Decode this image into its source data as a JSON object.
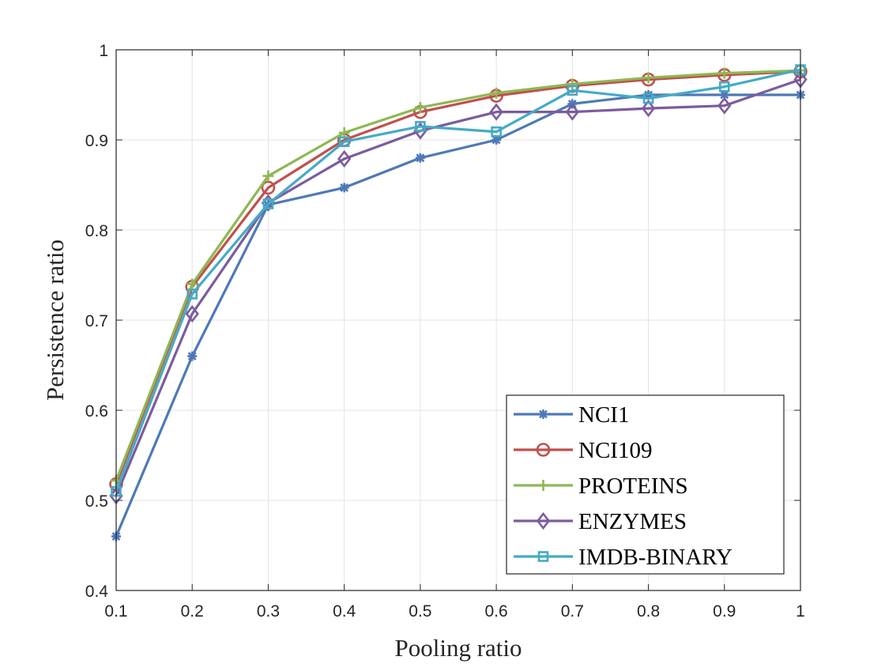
{
  "chart_data": {
    "type": "line",
    "title": "",
    "xlabel": "Pooling ratio",
    "ylabel": "Persistence ratio",
    "xlim": [
      0.1,
      1.0
    ],
    "ylim": [
      0.4,
      1.0
    ],
    "grid": true,
    "legend_position": "bottom-right",
    "x": [
      0.1,
      0.2,
      0.3,
      0.4,
      0.5,
      0.6,
      0.7,
      0.8,
      0.9,
      1.0
    ],
    "x_tick_labels": [
      "0.1",
      "0.2",
      "0.3",
      "0.4",
      "0.5",
      "0.6",
      "0.7",
      "0.8",
      "0.9",
      "1"
    ],
    "y_ticks": [
      0.4,
      0.5,
      0.6,
      0.7,
      0.8,
      0.9,
      1.0
    ],
    "y_tick_labels": [
      "0.4",
      "0.5",
      "0.6",
      "0.7",
      "0.8",
      "0.9",
      "1"
    ],
    "series": [
      {
        "name": "NCI1",
        "color": "#4E79B8",
        "marker": "asterisk",
        "values": [
          0.46,
          0.66,
          0.828,
          0.847,
          0.88,
          0.9,
          0.94,
          0.95,
          0.95,
          0.95
        ]
      },
      {
        "name": "NCI109",
        "color": "#C0504D",
        "marker": "circle",
        "values": [
          0.518,
          0.737,
          0.847,
          0.9,
          0.931,
          0.949,
          0.96,
          0.967,
          0.972,
          0.976
        ]
      },
      {
        "name": "PROTEINS",
        "color": "#8DB853",
        "marker": "plus",
        "values": [
          0.522,
          0.74,
          0.86,
          0.908,
          0.936,
          0.952,
          0.962,
          0.969,
          0.974,
          0.977
        ]
      },
      {
        "name": "ENZYMES",
        "color": "#7B5C9E",
        "marker": "diamond",
        "values": [
          0.505,
          0.707,
          0.83,
          0.879,
          0.91,
          0.931,
          0.931,
          0.935,
          0.938,
          0.967
        ]
      },
      {
        "name": "IMDB-BINARY",
        "color": "#45AAC6",
        "marker": "square",
        "values": [
          0.51,
          0.729,
          0.829,
          0.898,
          0.915,
          0.909,
          0.955,
          0.946,
          0.959,
          0.978
        ]
      }
    ]
  }
}
